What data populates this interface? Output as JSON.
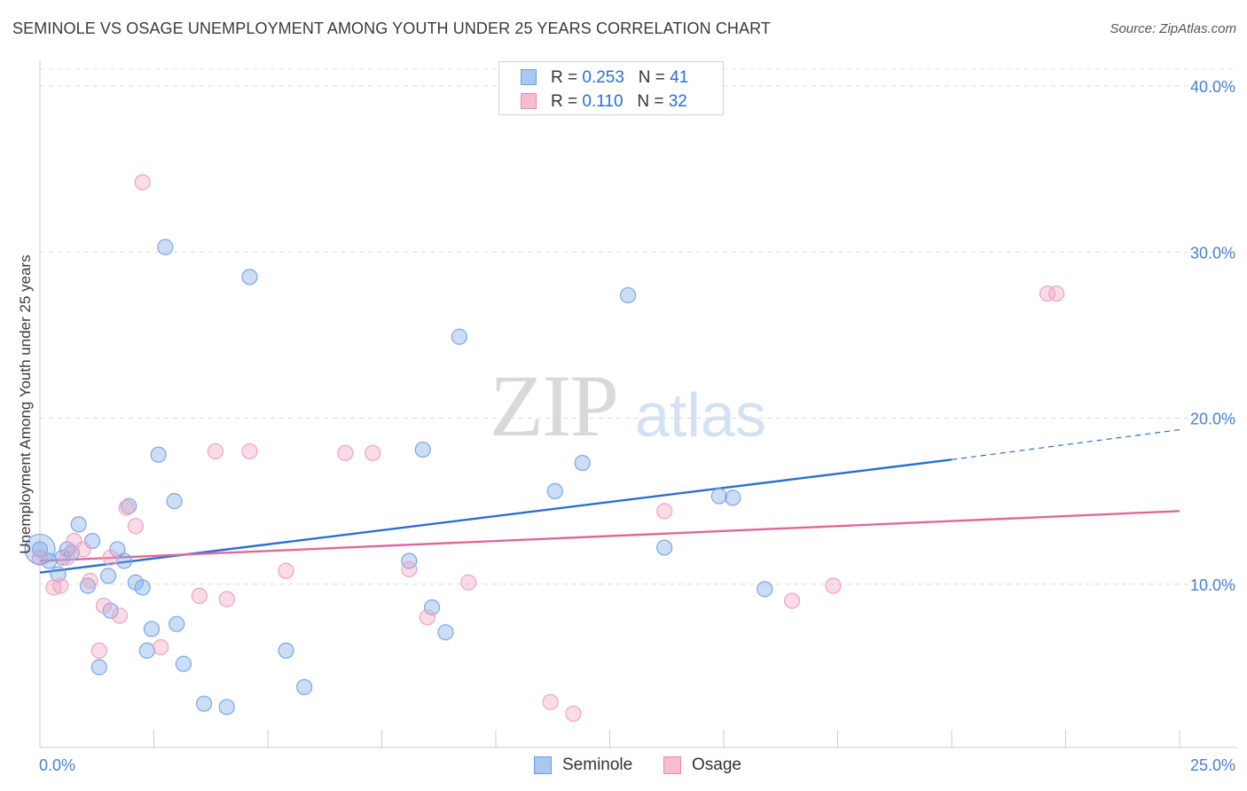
{
  "header": {
    "title": "SEMINOLE VS OSAGE UNEMPLOYMENT AMONG YOUTH UNDER 25 YEARS CORRELATION CHART",
    "source": "Source: ZipAtlas.com"
  },
  "watermark": {
    "zip": "ZIP",
    "atlas": "atlas"
  },
  "legend": {
    "rows": [
      {
        "r_label": "R = ",
        "r_value": "0.253",
        "n_label": "N = ",
        "n_value": "41",
        "color": "#a9c8f0",
        "border": "#6d9de0"
      },
      {
        "r_label": "R = ",
        "r_value": "0.110",
        "n_label": "N = ",
        "n_value": "32",
        "color": "#f6bdd0",
        "border": "#e98aab"
      }
    ]
  },
  "bottom_legend": [
    {
      "label": "Seminole",
      "color": "#a9c8f0",
      "border": "#6d9de0"
    },
    {
      "label": "Osage",
      "color": "#f6bdd0",
      "border": "#e98aab"
    }
  ],
  "chart_data": {
    "type": "scatter",
    "title": "SEMINOLE VS OSAGE UNEMPLOYMENT AMONG YOUTH UNDER 25 YEARS CORRELATION CHART",
    "xlabel": "",
    "ylabel": "Unemployment Among Youth under 25 years",
    "xlim": [
      0,
      25
    ],
    "ylim": [
      0,
      40
    ],
    "x_tick_labels": [
      "0.0%",
      "25.0%"
    ],
    "y_ticks": [
      10,
      20,
      30,
      40
    ],
    "y_tick_labels": [
      "10.0%",
      "20.0%",
      "30.0%",
      "40.0%"
    ],
    "grid": true,
    "legend_placement": "top-center",
    "series": [
      {
        "name": "Seminole",
        "color": "#7aa7e6",
        "line_color": "#2b6fd0",
        "trend": {
          "x0": 0,
          "y0": 10.7,
          "x1": 20,
          "y1": 17.5,
          "dash_to_x": 25,
          "dash_to_y": 19.3
        },
        "points": [
          [
            0.0,
            12.1
          ],
          [
            0.2,
            11.4
          ],
          [
            0.4,
            10.6
          ],
          [
            0.5,
            11.6
          ],
          [
            0.6,
            12.1
          ],
          [
            0.7,
            11.9
          ],
          [
            0.85,
            13.6
          ],
          [
            1.05,
            9.9
          ],
          [
            1.15,
            12.6
          ],
          [
            1.3,
            5.0
          ],
          [
            1.5,
            10.5
          ],
          [
            1.55,
            8.4
          ],
          [
            1.7,
            12.1
          ],
          [
            1.85,
            11.4
          ],
          [
            1.95,
            14.7
          ],
          [
            2.1,
            10.1
          ],
          [
            2.25,
            9.8
          ],
          [
            2.35,
            6.0
          ],
          [
            2.45,
            7.3
          ],
          [
            2.6,
            17.8
          ],
          [
            2.75,
            30.3
          ],
          [
            2.95,
            15.0
          ],
          [
            3.0,
            7.6
          ],
          [
            3.15,
            5.2
          ],
          [
            3.6,
            2.8
          ],
          [
            4.1,
            2.6
          ],
          [
            4.6,
            28.5
          ],
          [
            5.4,
            6.0
          ],
          [
            5.8,
            3.8
          ],
          [
            8.1,
            11.4
          ],
          [
            8.4,
            18.1
          ],
          [
            8.6,
            8.6
          ],
          [
            8.9,
            7.1
          ],
          [
            9.2,
            24.9
          ],
          [
            11.3,
            15.6
          ],
          [
            11.9,
            17.3
          ],
          [
            12.9,
            27.4
          ],
          [
            13.7,
            12.2
          ],
          [
            14.9,
            15.3
          ],
          [
            15.2,
            15.2
          ],
          [
            15.9,
            9.7
          ]
        ]
      },
      {
        "name": "Osage",
        "color": "#f0a3bf",
        "line_color": "#e0679a",
        "trend": {
          "x0": 0,
          "y0": 11.4,
          "x1": 25,
          "y1": 14.4
        },
        "points": [
          [
            0.0,
            11.6
          ],
          [
            0.3,
            9.8
          ],
          [
            0.45,
            9.9
          ],
          [
            0.6,
            11.6
          ],
          [
            0.75,
            12.6
          ],
          [
            0.95,
            12.1
          ],
          [
            1.1,
            10.2
          ],
          [
            1.3,
            6.0
          ],
          [
            1.4,
            8.7
          ],
          [
            1.55,
            11.6
          ],
          [
            1.75,
            8.1
          ],
          [
            1.9,
            14.6
          ],
          [
            2.1,
            13.5
          ],
          [
            2.25,
            34.2
          ],
          [
            2.65,
            6.2
          ],
          [
            3.5,
            9.3
          ],
          [
            3.85,
            18.0
          ],
          [
            4.1,
            9.1
          ],
          [
            4.6,
            18.0
          ],
          [
            5.4,
            10.8
          ],
          [
            6.7,
            17.9
          ],
          [
            7.3,
            17.9
          ],
          [
            8.1,
            10.9
          ],
          [
            8.5,
            8.0
          ],
          [
            9.4,
            10.1
          ],
          [
            11.2,
            2.9
          ],
          [
            11.7,
            2.2
          ],
          [
            13.7,
            14.4
          ],
          [
            16.5,
            9.0
          ],
          [
            17.4,
            9.9
          ],
          [
            22.1,
            27.5
          ],
          [
            22.3,
            27.5
          ]
        ]
      }
    ]
  }
}
